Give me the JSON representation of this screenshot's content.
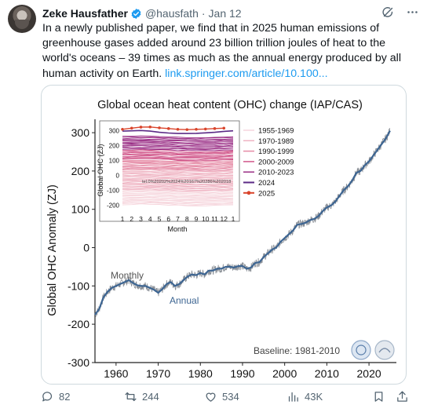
{
  "author": {
    "name": "Zeke Hausfather",
    "handle": "@hausfath",
    "separator": "·",
    "date": "Jan 12"
  },
  "tweet": {
    "text": "In a newly published paper, we find that in 2025 human emissions of greenhouse gases added around 23 billion trillion joules of heat to the world's oceans – 39 times as much as the annual energy produced by all human activity on Earth.",
    "link": "link.springer.com/article/10.100..."
  },
  "actions": {
    "replies": "82",
    "reposts": "244",
    "likes": "534",
    "views": "43K"
  },
  "colors": {
    "annual": "#3d6592",
    "monthly": "#8a8f96",
    "y2024": "#5b2a86",
    "y2025": "#d9442b",
    "link": "#1d9bf0"
  },
  "chart_data": [
    {
      "type": "line",
      "title": "Global ocean heat content (OHC) change (IAP/CAS)",
      "ylabel": "Global OHC Anomaly (ZJ)",
      "xlabel": "",
      "x_ticks": [
        1960,
        1970,
        1980,
        1990,
        2000,
        2010,
        2020
      ],
      "y_ticks": [
        -300,
        -200,
        -100,
        0,
        100,
        200,
        300
      ],
      "xlim": [
        1955,
        2026.5
      ],
      "ylim": [
        -300,
        335
      ],
      "annotations": {
        "monthly": "Monthly",
        "annual": "Annual",
        "baseline": "Baseline: 1981-2010"
      },
      "series": [
        {
          "name": "Annual",
          "x": [
            1955,
            1956,
            1957,
            1958,
            1959,
            1960,
            1961,
            1962,
            1963,
            1964,
            1965,
            1966,
            1967,
            1968,
            1969,
            1970,
            1971,
            1972,
            1973,
            1974,
            1975,
            1976,
            1977,
            1978,
            1979,
            1980,
            1981,
            1982,
            1983,
            1984,
            1985,
            1986,
            1987,
            1988,
            1989,
            1990,
            1991,
            1992,
            1993,
            1994,
            1995,
            1996,
            1997,
            1998,
            1999,
            2000,
            2001,
            2002,
            2003,
            2004,
            2005,
            2006,
            2007,
            2008,
            2009,
            2010,
            2011,
            2012,
            2013,
            2014,
            2015,
            2016,
            2017,
            2018,
            2019,
            2020,
            2021,
            2022,
            2023,
            2024,
            2025
          ],
          "values": [
            -175,
            -160,
            -130,
            -115,
            -105,
            -100,
            -95,
            -90,
            -85,
            -92,
            -98,
            -100,
            -100,
            -105,
            -110,
            -118,
            -108,
            -95,
            -90,
            -100,
            -95,
            -85,
            -75,
            -70,
            -72,
            -66,
            -70,
            -60,
            -60,
            -55,
            -55,
            -50,
            -50,
            -52,
            -48,
            -48,
            -55,
            -52,
            -40,
            -38,
            -25,
            -15,
            -5,
            0,
            15,
            25,
            35,
            45,
            60,
            62,
            65,
            72,
            75,
            82,
            95,
            105,
            110,
            120,
            135,
            150,
            160,
            175,
            195,
            200,
            215,
            225,
            240,
            255,
            270,
            285,
            305
          ]
        }
      ]
    },
    {
      "type": "line",
      "title": "",
      "ylabel": "Global OHC (ZJ)",
      "xlabel": "Month",
      "x_ticks": [
        "1",
        "2",
        "3",
        "4",
        "5",
        "6",
        "7",
        "8",
        "9",
        "10",
        "11",
        "12",
        "1"
      ],
      "y_ticks": [
        300,
        200,
        100,
        0,
        -100,
        -200
      ],
      "ylim": [
        -230,
        330
      ],
      "tick_glitch_label": "tel.0%20202%2024%20167%20286%202018",
      "legend": [
        "1955-1969",
        "1970-1989",
        "1990-1999",
        "2000-2009",
        "2010-2023",
        "2024",
        "2025"
      ],
      "series": [
        {
          "name": "2024",
          "x": [
            1,
            2,
            3,
            4,
            5,
            6,
            7,
            8,
            9,
            10,
            11,
            12,
            13
          ],
          "values": [
            298,
            300,
            302,
            298,
            290,
            285,
            282,
            282,
            283,
            286,
            290,
            296,
            300
          ]
        },
        {
          "name": "2025",
          "x": [
            1,
            2,
            3,
            4,
            5,
            6,
            7,
            8,
            9,
            10,
            11,
            12
          ],
          "values": [
            310,
            318,
            325,
            326,
            320,
            315,
            310,
            308,
            310,
            312,
            315,
            318
          ]
        }
      ]
    }
  ]
}
